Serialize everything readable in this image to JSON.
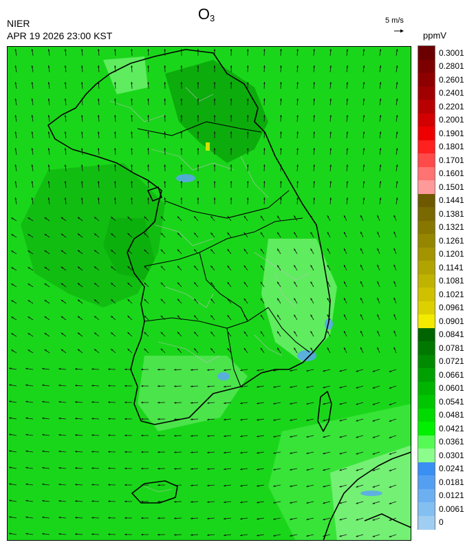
{
  "header": {
    "species": "O",
    "species_subscript": "3",
    "organization": "NIER",
    "timestamp": "APR 19 2026 23:00 KST",
    "reference_vector_label": "5 m/s",
    "unit": "ppmV"
  },
  "legend": {
    "labels": [
      "0.3001",
      "0.2801",
      "0.2601",
      "0.2401",
      "0.2201",
      "0.2001",
      "0.1901",
      "0.1801",
      "0.1701",
      "0.1601",
      "0.1501",
      "0.1441",
      "0.1381",
      "0.1321",
      "0.1261",
      "0.1201",
      "0.1141",
      "0.1081",
      "0.1021",
      "0.0961",
      "0.0901",
      "0.0841",
      "0.0781",
      "0.0721",
      "0.0661",
      "0.0601",
      "0.0541",
      "0.0481",
      "0.0421",
      "0.0361",
      "0.0301",
      "0.0241",
      "0.0181",
      "0.0121",
      "0.0061",
      "0"
    ],
    "colors": [
      "#6b0000",
      "#7c0000",
      "#8e0000",
      "#a00000",
      "#b80000",
      "#d20000",
      "#ee0000",
      "#ff2020",
      "#ff4a4a",
      "#ff7373",
      "#ff9a9a",
      "#6e5800",
      "#7a6800",
      "#877600",
      "#958600",
      "#a39400",
      "#b2a400",
      "#c0b300",
      "#cfc100",
      "#ddd000",
      "#f2ea00",
      "#006400",
      "#007800",
      "#008a00",
      "#00a000",
      "#00b400",
      "#00c600",
      "#00da00",
      "#00f000",
      "#55fa55",
      "#8cfc8c",
      "#3a8ff2",
      "#549ff2",
      "#6db0f2",
      "#84bff2",
      "#a0cdf2"
    ]
  },
  "map": {
    "background_color": "#1ad61a"
  }
}
